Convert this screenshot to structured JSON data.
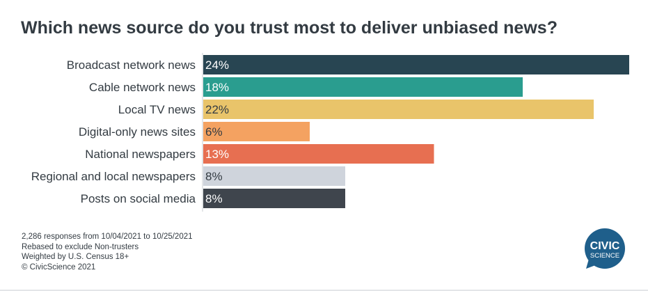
{
  "chart_data": {
    "type": "bar",
    "orientation": "horizontal",
    "title": "Which news source do you trust most to deliver unbiased news?",
    "categories": [
      "Broadcast network news",
      "Cable network news",
      "Local TV news",
      "Digital-only news sites",
      "National newspapers",
      "Regional and local newspapers",
      "Posts on social media"
    ],
    "values": [
      24,
      18,
      22,
      6,
      13,
      8,
      8
    ],
    "value_labels": [
      "24%",
      "18%",
      "22%",
      "6%",
      "13%",
      "8%",
      "8%"
    ],
    "colors": [
      "#284552",
      "#2a9d8f",
      "#e9c46a",
      "#f4a261",
      "#e76f51",
      "#cfd4dc",
      "#3f454d"
    ],
    "label_colors": [
      "#ffffff",
      "#ffffff",
      "#333b42",
      "#333b42",
      "#ffffff",
      "#333b42",
      "#ffffff"
    ],
    "xlim": [
      0,
      24
    ],
    "xlabel": "",
    "ylabel": "",
    "grid": false
  },
  "footnotes": [
    "2,286 responses from 10/04/2021 to 10/25/2021",
    "Rebased to exclude Non-trusters",
    "Weighted by U.S. Census 18+",
    "© CivicScience 2021"
  ],
  "logo": {
    "line1": "CIVIC",
    "line2": "SCIENCE",
    "color": "#1f5f8b"
  }
}
